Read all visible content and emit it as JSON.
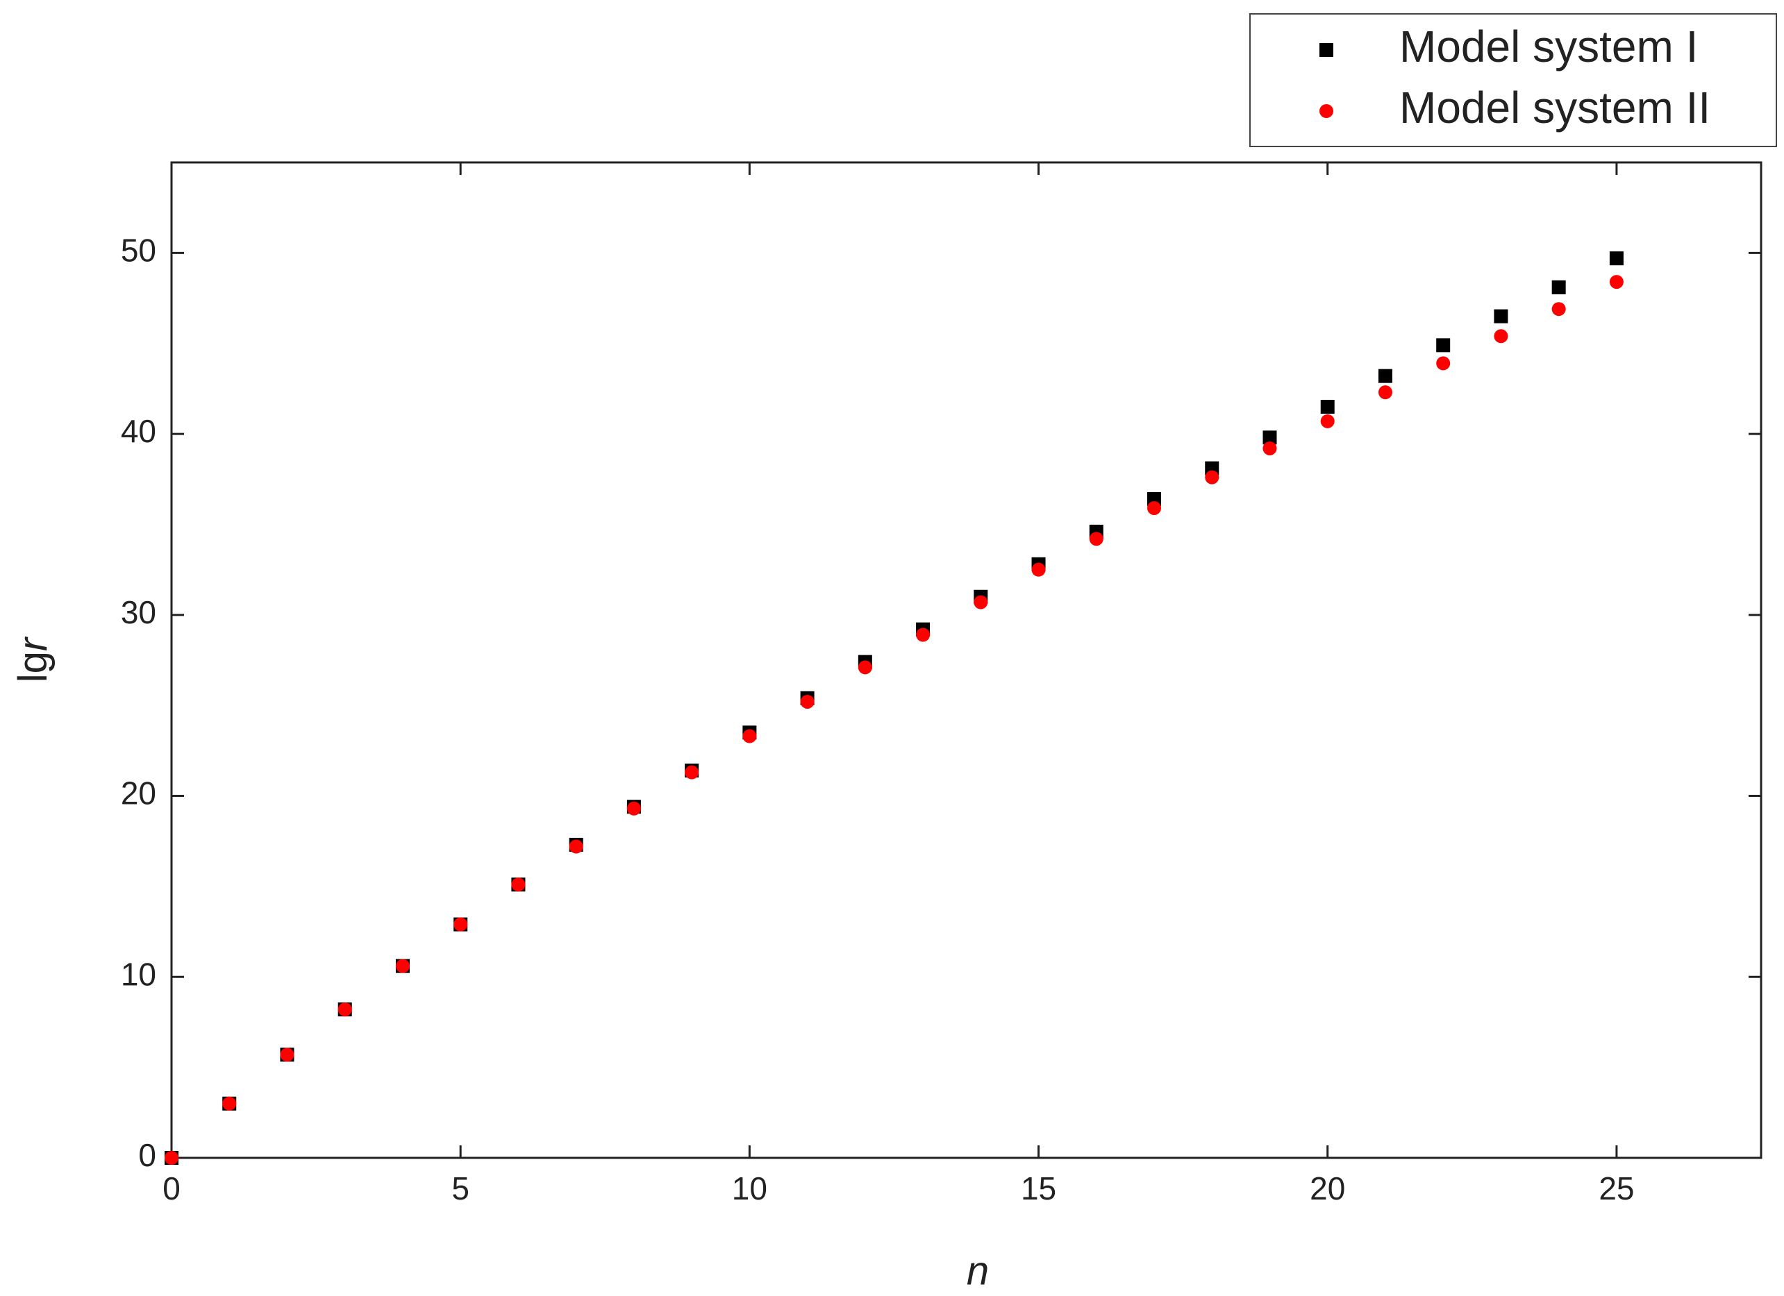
{
  "chart_data": {
    "type": "scatter",
    "x_label": "n",
    "y_label": [
      "lg",
      "r"
    ],
    "x": [
      0,
      1,
      2,
      3,
      4,
      5,
      6,
      7,
      8,
      9,
      10,
      11,
      12,
      13,
      14,
      15,
      16,
      17,
      18,
      19,
      20,
      21,
      22,
      23,
      24,
      25
    ],
    "series": [
      {
        "name": "Model system I",
        "color": "#000000",
        "marker": "square",
        "values": [
          0,
          3.0,
          5.7,
          8.2,
          10.6,
          12.9,
          15.1,
          17.3,
          19.4,
          21.4,
          23.5,
          25.4,
          27.4,
          29.2,
          31.0,
          32.8,
          34.6,
          36.4,
          38.1,
          39.8,
          41.5,
          43.2,
          44.9,
          46.5,
          48.1,
          49.7
        ]
      },
      {
        "name": "Model system II",
        "color": "#ff0000",
        "marker": "circle",
        "values": [
          0,
          3.0,
          5.7,
          8.2,
          10.6,
          12.9,
          15.1,
          17.2,
          19.3,
          21.3,
          23.3,
          25.2,
          27.1,
          28.9,
          30.7,
          32.5,
          34.2,
          35.9,
          37.6,
          39.2,
          40.7,
          42.3,
          43.9,
          45.4,
          46.9,
          48.4
        ]
      }
    ],
    "xlim": [
      0,
      27.5
    ],
    "xticks": [
      0,
      5,
      10,
      15,
      20,
      25
    ],
    "ylim": [
      0,
      55
    ],
    "yticks": [
      0,
      10,
      20,
      30,
      40,
      50
    ],
    "grid": false,
    "legend": "top-right"
  }
}
